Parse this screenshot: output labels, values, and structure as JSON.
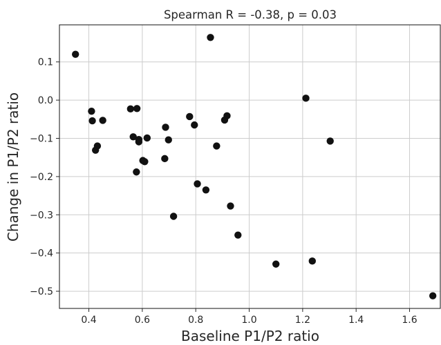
{
  "chart_data": {
    "type": "scatter",
    "title": "Spearman R = -0.38, p = 0.03",
    "xlabel": "Baseline P1/P2 ratio",
    "ylabel": "Change in P1/P2 ratio",
    "xlim": [
      0.29,
      1.715
    ],
    "ylim": [
      -0.545,
      0.197
    ],
    "xticks": [
      0.4,
      0.6,
      0.8,
      1.0,
      1.2,
      1.4,
      1.6
    ],
    "xtick_labels": [
      "0.4",
      "0.6",
      "0.8",
      "1.0",
      "1.2",
      "1.4",
      "1.6"
    ],
    "yticks": [
      0.1,
      0.0,
      -0.1,
      -0.2,
      -0.3,
      -0.4,
      -0.5
    ],
    "ytick_labels": [
      "0.1",
      "0.0",
      "−0.1",
      "−0.2",
      "−0.3",
      "−0.4",
      "−0.5"
    ],
    "grid": true,
    "marker_color": "#111111",
    "points": [
      {
        "x": 0.35,
        "y": 0.12
      },
      {
        "x": 0.855,
        "y": 0.164
      },
      {
        "x": 0.41,
        "y": -0.029
      },
      {
        "x": 0.413,
        "y": -0.054
      },
      {
        "x": 0.452,
        "y": -0.053
      },
      {
        "x": 0.425,
        "y": -0.131
      },
      {
        "x": 0.432,
        "y": -0.12
      },
      {
        "x": 0.556,
        "y": -0.023
      },
      {
        "x": 0.58,
        "y": -0.022
      },
      {
        "x": 0.566,
        "y": -0.096
      },
      {
        "x": 0.587,
        "y": -0.103
      },
      {
        "x": 0.587,
        "y": -0.109
      },
      {
        "x": 0.578,
        "y": -0.188
      },
      {
        "x": 0.602,
        "y": -0.158
      },
      {
        "x": 0.609,
        "y": -0.161
      },
      {
        "x": 0.618,
        "y": -0.099
      },
      {
        "x": 0.687,
        "y": -0.071
      },
      {
        "x": 0.698,
        "y": -0.104
      },
      {
        "x": 0.684,
        "y": -0.153
      },
      {
        "x": 0.717,
        "y": -0.304
      },
      {
        "x": 0.777,
        "y": -0.043
      },
      {
        "x": 0.795,
        "y": -0.065
      },
      {
        "x": 0.806,
        "y": -0.219
      },
      {
        "x": 0.838,
        "y": -0.235
      },
      {
        "x": 0.878,
        "y": -0.12
      },
      {
        "x": 0.908,
        "y": -0.052
      },
      {
        "x": 0.917,
        "y": -0.041
      },
      {
        "x": 0.93,
        "y": -0.277
      },
      {
        "x": 0.958,
        "y": -0.353
      },
      {
        "x": 1.1,
        "y": -0.429
      },
      {
        "x": 1.212,
        "y": 0.005
      },
      {
        "x": 1.236,
        "y": -0.421
      },
      {
        "x": 1.303,
        "y": -0.107
      },
      {
        "x": 1.687,
        "y": -0.512
      }
    ]
  }
}
